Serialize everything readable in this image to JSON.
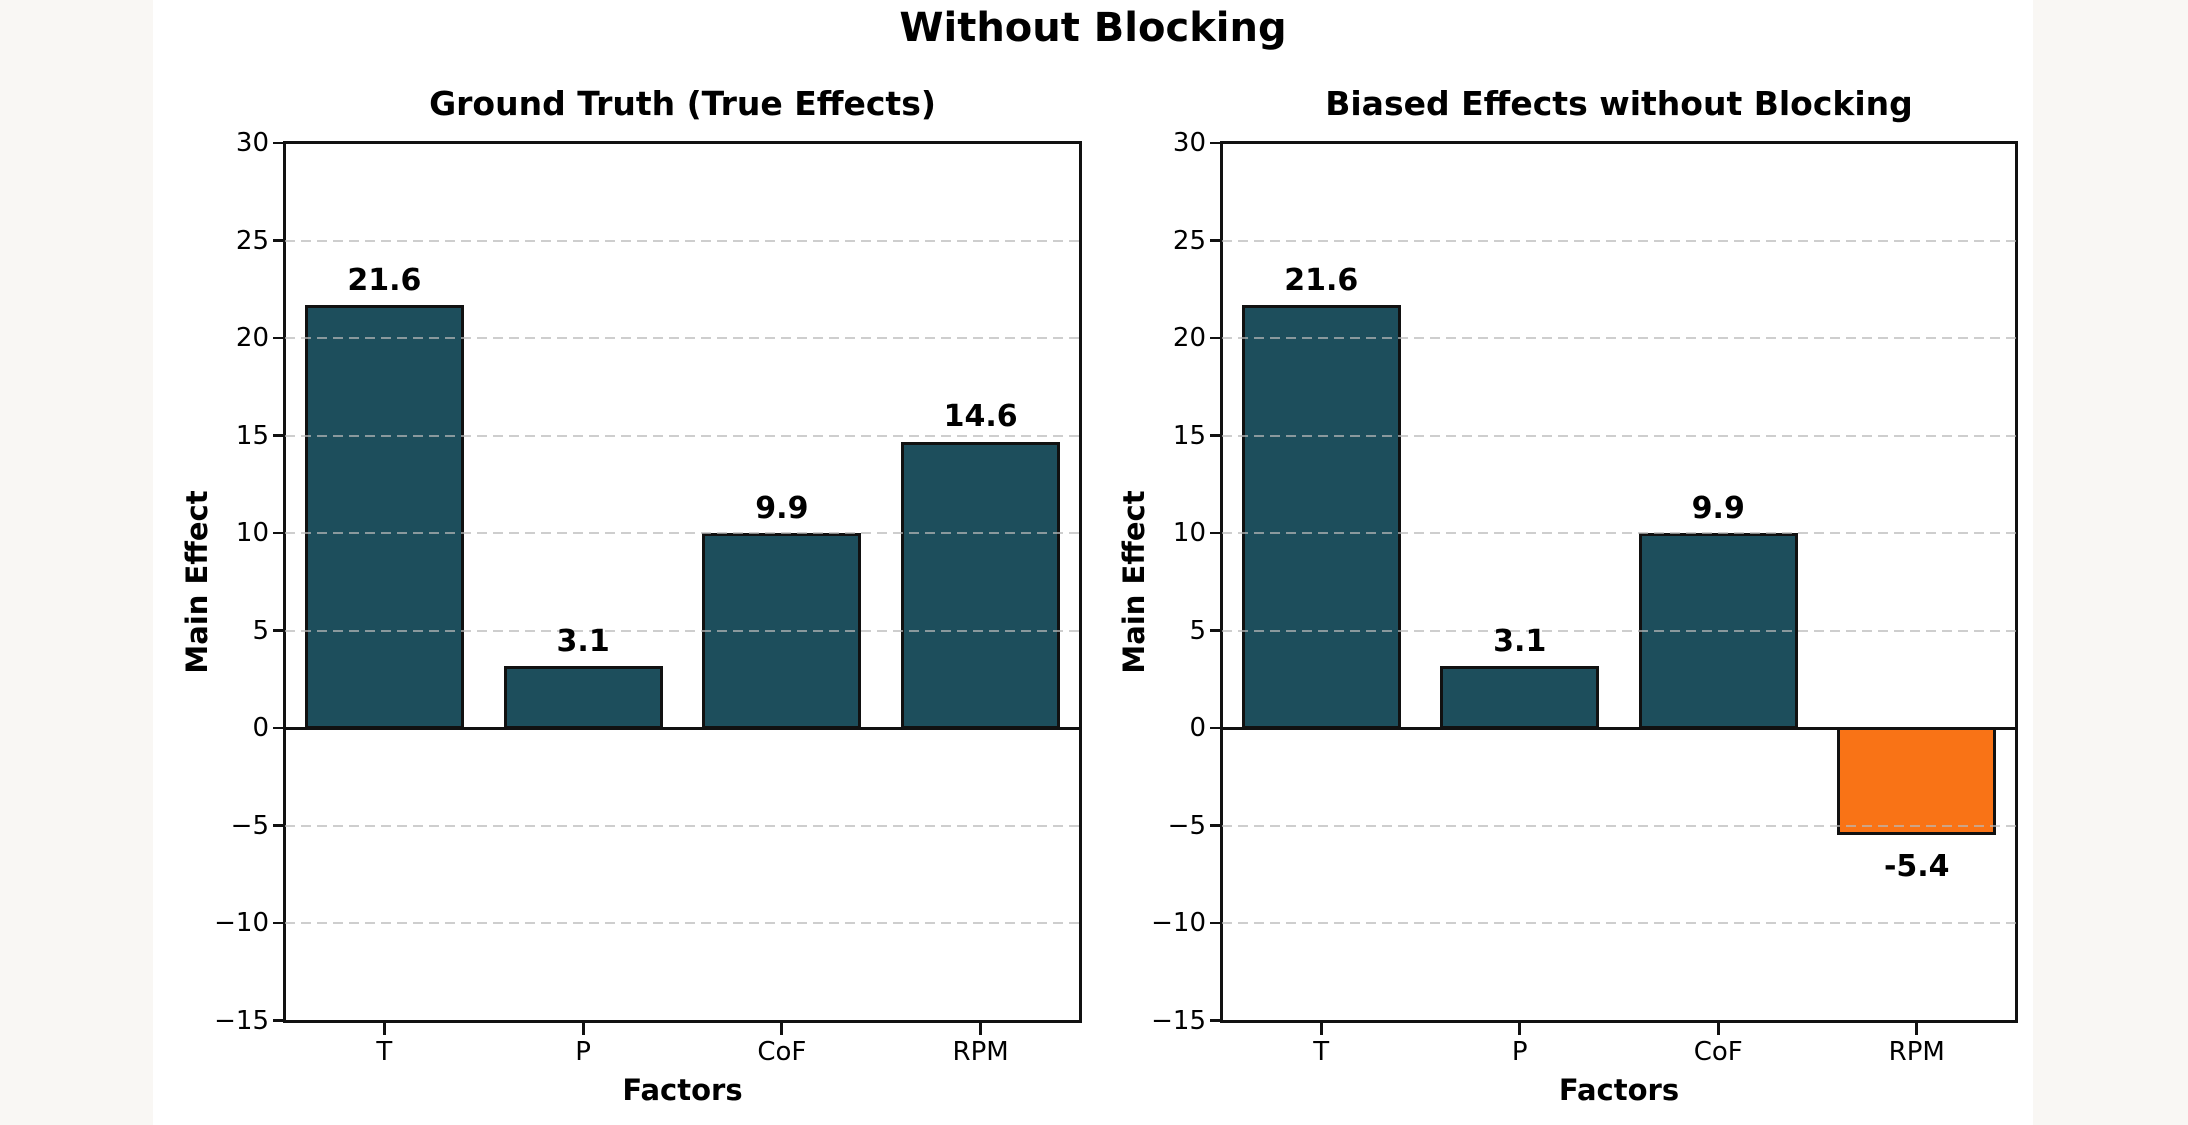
{
  "suptitle": "Without Blocking",
  "style": {
    "canvas_background": "#f9f7f4",
    "figure_background": "#ffffff",
    "bar_teal": "#1d4e5c",
    "bar_orange": "#f97316",
    "bar_edge_color": "#111111",
    "axis_color": "#111111",
    "grid_color": "#b9b9b9",
    "text_color": "#000000"
  },
  "chart_data": [
    {
      "type": "bar",
      "title": "Ground Truth (True Effects)",
      "xlabel": "Factors",
      "ylabel": "Main Effect",
      "categories": [
        "T",
        "P",
        "CoF",
        "RPM"
      ],
      "values": [
        21.6,
        3.1,
        9.9,
        14.6
      ],
      "value_labels": [
        "21.6",
        "3.1",
        "9.9",
        "14.6"
      ],
      "bar_colors": [
        "#1d4e5c",
        "#1d4e5c",
        "#1d4e5c",
        "#1d4e5c"
      ],
      "ylim": [
        -15,
        30
      ],
      "yticks": [
        30,
        25,
        20,
        15,
        10,
        5,
        0,
        -5,
        -10,
        -15
      ],
      "ytick_labels": [
        "30",
        "25",
        "20",
        "15",
        "10",
        "5",
        "0",
        "−5",
        "−10",
        "−15"
      ],
      "grid": "horizontal-dashed",
      "legend": null
    },
    {
      "type": "bar",
      "title": "Biased Effects without Blocking",
      "xlabel": "Factors",
      "ylabel": "Main Effect",
      "categories": [
        "T",
        "P",
        "CoF",
        "RPM"
      ],
      "values": [
        21.6,
        3.1,
        9.9,
        -5.4
      ],
      "value_labels": [
        "21.6",
        "3.1",
        "9.9",
        "-5.4"
      ],
      "bar_colors": [
        "#1d4e5c",
        "#1d4e5c",
        "#1d4e5c",
        "#f97316"
      ],
      "ylim": [
        -15,
        30
      ],
      "yticks": [
        30,
        25,
        20,
        15,
        10,
        5,
        0,
        -5,
        -10,
        -15
      ],
      "ytick_labels": [
        "30",
        "25",
        "20",
        "15",
        "10",
        "5",
        "0",
        "−5",
        "−10",
        "−15"
      ],
      "grid": "horizontal-dashed",
      "legend": null
    }
  ]
}
